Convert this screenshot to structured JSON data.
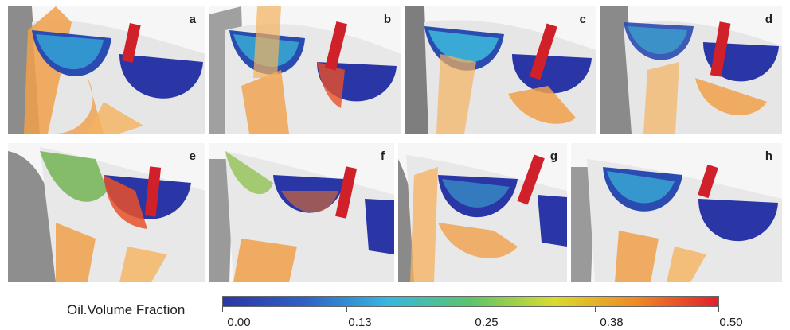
{
  "panels": [
    {
      "letter": "a"
    },
    {
      "letter": "b"
    },
    {
      "letter": "c"
    },
    {
      "letter": "d"
    },
    {
      "letter": "e"
    },
    {
      "letter": "f"
    },
    {
      "letter": "g"
    },
    {
      "letter": "h"
    }
  ],
  "legend": {
    "title": "Oil.Volume Fraction",
    "min_label": "0.00",
    "ticks": [
      "0.00",
      "0.13",
      "0.25",
      "0.38",
      "0.50"
    ],
    "colors": [
      "#2a36a6",
      "#2e62c8",
      "#36b8e0",
      "#5cc46a",
      "#d8dc2e",
      "#f08a24",
      "#e0202a"
    ]
  }
}
